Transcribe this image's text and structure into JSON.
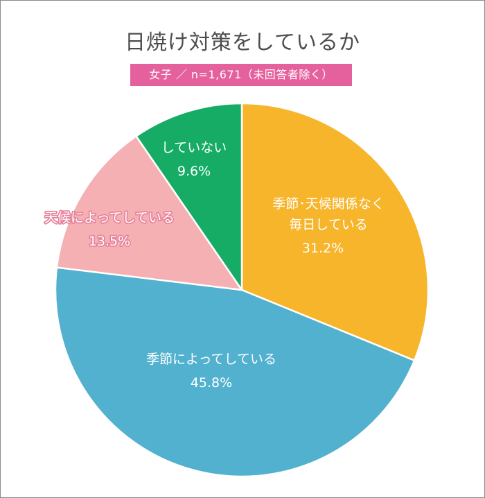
{
  "title": "日焼け対策をしているか",
  "subtitle": "女子 ／ n=1,671（未回答者除く）",
  "colors": {
    "every_day": "#f6b52b",
    "by_season": "#52b1ce",
    "by_weather": "#f4b0b3",
    "not_doing": "#16ac66"
  },
  "chart_data": {
    "type": "pie",
    "title": "日焼け対策をしているか",
    "subtitle": "女子 ／ n=1,671（未回答者除く）",
    "start": "12 o'clock, clockwise",
    "slices": [
      {
        "key": "every_day",
        "label_lines": [
          "季節･天候関係なく",
          "毎日している"
        ],
        "value": 31.2,
        "value_label": "31.2%",
        "color": "#f6b52b"
      },
      {
        "key": "by_season",
        "label_lines": [
          "季節によってしている"
        ],
        "value": 45.8,
        "value_label": "45.8%",
        "color": "#52b1ce"
      },
      {
        "key": "by_weather",
        "label_lines": [
          "天候によってしている"
        ],
        "value": 13.5,
        "value_label": "13.5%",
        "color": "#f4b0b3"
      },
      {
        "key": "not_doing",
        "label_lines": [
          "していない"
        ],
        "value": 9.6,
        "value_label": "9.6%",
        "color": "#16ac66"
      }
    ]
  }
}
